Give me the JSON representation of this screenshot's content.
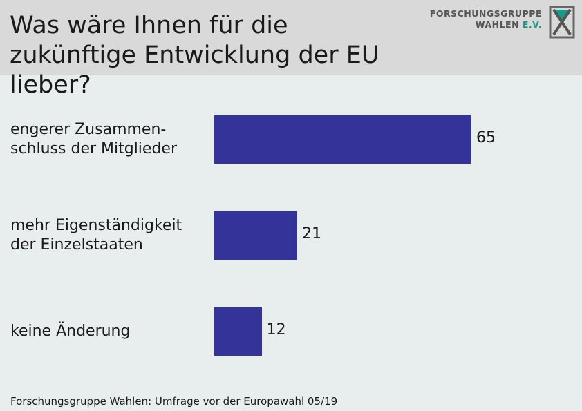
{
  "header": {
    "title": "Was wäre Ihnen für die\nzukünftige Entwicklung der EU lieber?",
    "logo_line1": "FORSCHUNGSGRUPPE",
    "logo_line2_main": "WAHLEN",
    "logo_line2_accent": "E.V."
  },
  "chart_data": {
    "type": "bar",
    "orientation": "horizontal",
    "title": "Was wäre Ihnen für die zukünftige Entwicklung der EU lieber?",
    "categories": [
      "engerer Zusammen-\nschluss der Mitglieder",
      "mehr Eigenständigkeit\nder Einzelstaaten",
      "keine Änderung"
    ],
    "values": [
      65,
      21,
      12
    ],
    "xlim": [
      0,
      100
    ],
    "grid": false,
    "legend": "none",
    "bar_color": "#333399"
  },
  "footer": {
    "source": "Forschungsgruppe Wahlen: Umfrage vor der Europawahl 05/19"
  }
}
